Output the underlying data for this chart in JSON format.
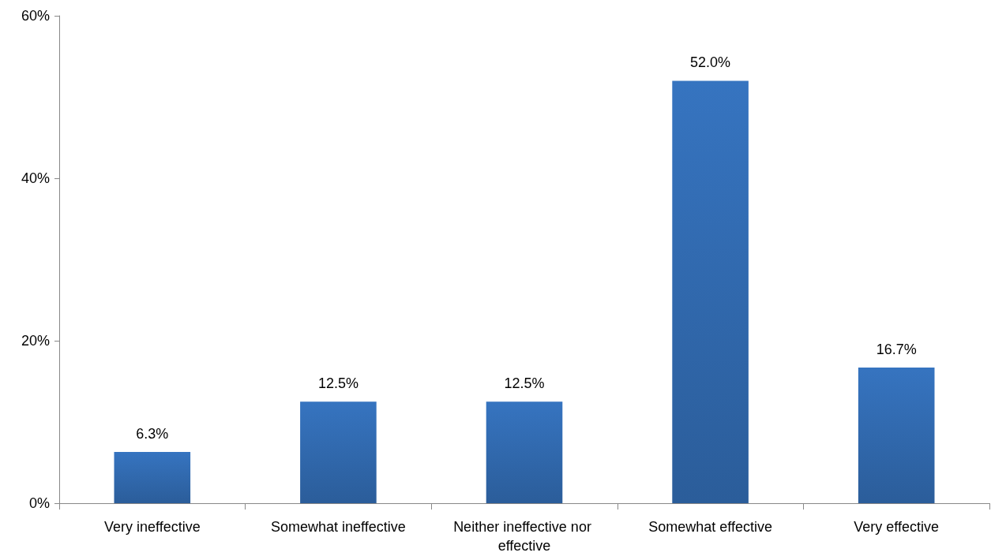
{
  "chart_data": {
    "type": "bar",
    "categories": [
      "Very ineffective",
      "Somewhat ineffective",
      "Neither ineffective nor effective",
      "Somewhat effective",
      "Very effective"
    ],
    "values": [
      6.3,
      12.5,
      12.5,
      52.0,
      16.7
    ],
    "value_labels": [
      "6.3%",
      "12.5%",
      "12.5%",
      "52.0%",
      "16.7%"
    ],
    "color": "#3674c0",
    "ylim": [
      0,
      60
    ],
    "yticks": [
      {
        "value": 0,
        "label": "0%"
      },
      {
        "value": 20,
        "label": "20%"
      },
      {
        "value": 40,
        "label": "40%"
      },
      {
        "value": 60,
        "label": "60%"
      }
    ],
    "grid": false
  }
}
